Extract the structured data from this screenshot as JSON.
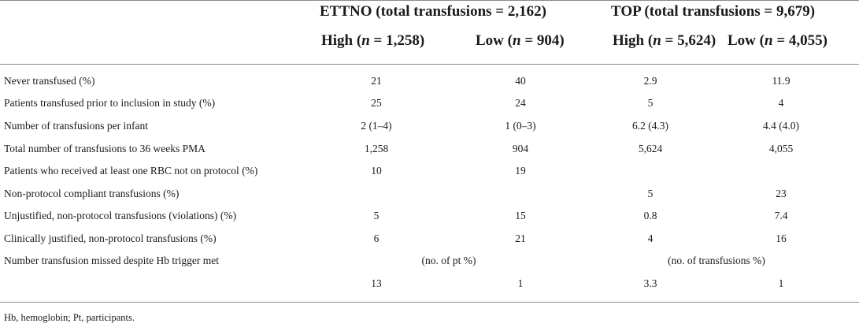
{
  "table": {
    "groups": [
      {
        "label": "ETTNO (total transfusions = 2,162)"
      },
      {
        "label": "TOP (total transfusions = 9,679)"
      }
    ],
    "columns": [
      {
        "word": "High",
        "n": "n",
        "rest": " = 1,258)"
      },
      {
        "word": "Low",
        "n": "n",
        "rest": " = 904)"
      },
      {
        "word": "High",
        "n": "n",
        "rest": " = 5,624)"
      },
      {
        "word": "Low",
        "n": "n",
        "rest": " = 4,055)"
      }
    ],
    "rows": [
      {
        "label": "Never transfused (%)",
        "cells": [
          "21",
          "40",
          "2.9",
          "11.9"
        ]
      },
      {
        "label": "Patients transfused prior to inclusion in study (%)",
        "cells": [
          "25",
          "24",
          "5",
          "4"
        ]
      },
      {
        "label": "Number of transfusions per infant",
        "cells": [
          "2 (1–4)",
          "1 (0–3)",
          "6.2 (4.3)",
          "4.4 (4.0)"
        ]
      },
      {
        "label": "Total number of transfusions to 36 weeks PMA",
        "cells": [
          "1,258",
          "904",
          "5,624",
          "4,055"
        ]
      },
      {
        "label": "Patients who received at least one RBC not on protocol (%)",
        "cells": [
          "10",
          "19",
          "",
          ""
        ]
      },
      {
        "label": "Non-protocol compliant transfusions (%)",
        "cells": [
          "",
          "",
          "5",
          "23"
        ]
      },
      {
        "label": "Unjustified, non-protocol transfusions (violations) (%)",
        "cells": [
          "5",
          "15",
          "0.8",
          "7.4"
        ]
      },
      {
        "label": "Clinically justified, non-protocol transfusions (%)",
        "cells": [
          "6",
          "21",
          "4",
          "16"
        ]
      },
      {
        "label": "Number transfusion missed despite Hb trigger met",
        "spans": [
          "(no. of pt %)",
          "(no. of transfusions %)"
        ]
      },
      {
        "label": "",
        "cells": [
          "13",
          "1",
          "3.3",
          "1"
        ]
      }
    ],
    "footnote": "Hb, hemoglobin; Pt, participants."
  }
}
